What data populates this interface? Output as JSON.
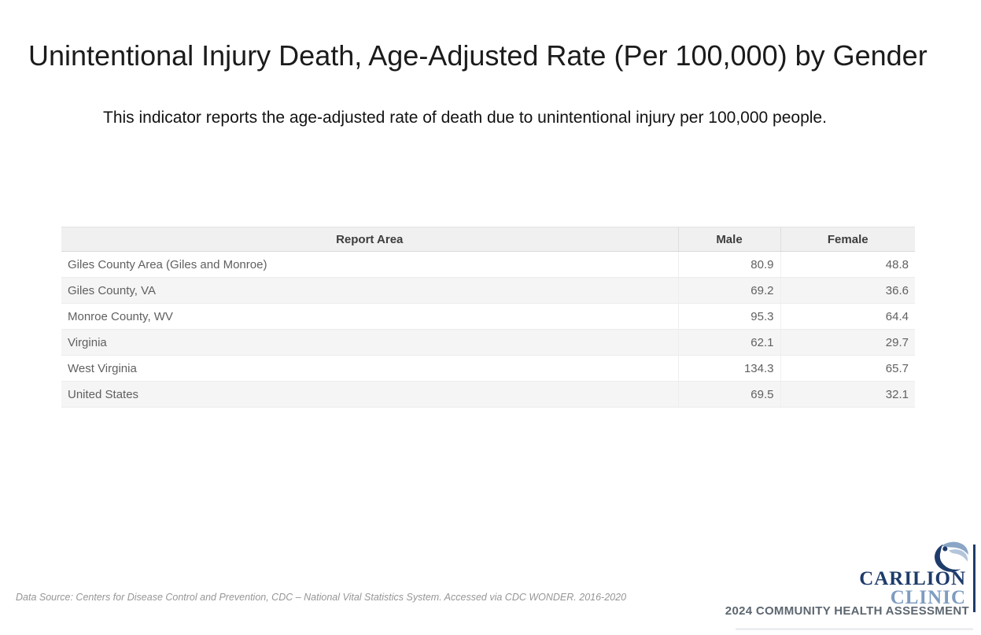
{
  "page": {
    "title": "Unintentional Injury Death, Age-Adjusted Rate (Per 100,000) by Gender",
    "description": "This indicator reports the age-adjusted rate of death due to unintentional injury per 100,000 people."
  },
  "table": {
    "columns": [
      "Report Area",
      "Male",
      "Female"
    ],
    "rows": [
      {
        "area": "Giles County Area (Giles and Monroe)",
        "male": "80.9",
        "female": "48.8"
      },
      {
        "area": "Giles County, VA",
        "male": "69.2",
        "female": "36.6"
      },
      {
        "area": "Monroe County, WV",
        "male": "95.3",
        "female": "64.4"
      },
      {
        "area": "Virginia",
        "male": "62.1",
        "female": "29.7"
      },
      {
        "area": "West Virginia",
        "male": "134.3",
        "female": "65.7"
      },
      {
        "area": "United States",
        "male": "69.5",
        "female": "32.1"
      }
    ]
  },
  "footer": {
    "data_source": "Data Source: Centers for Disease Control and Prevention, CDC – National Vital Statistics System. Accessed via CDC WONDER. 2016-2020",
    "assessment": "2024 COMMUNITY HEALTH ASSESSMENT"
  },
  "logo": {
    "line1": "CARILION",
    "line2": "CLINIC",
    "icon": "carilion-swoosh-icon"
  },
  "colors": {
    "navy": "#1e3c6b",
    "clinic_blue": "#7d9cc0",
    "swoosh_light_blue": "#8aa5c5",
    "swoosh_pale_blue": "#b3c5da",
    "table_header_bg": "#f0f0f0",
    "table_zebra_bg": "#f5f5f5",
    "table_body_text": "#606060",
    "table_header_text": "#3d3d3d",
    "footnote_text": "#969696",
    "assessment_text": "#5d6770",
    "title_text": "#1b1b1b"
  }
}
